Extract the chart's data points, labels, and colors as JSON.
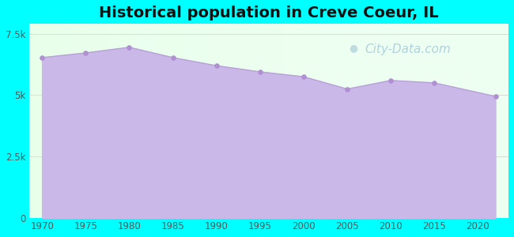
{
  "title": "Historical population in Creve Coeur, IL",
  "title_fontsize": 14,
  "title_fontweight": "bold",
  "background_color": "#00FFFF",
  "plot_bg_color": "#edfff0",
  "area_color": "#c9b8e8",
  "area_alpha": 1.0,
  "line_color": "#b8a0d8",
  "marker_color": "#b090d0",
  "years": [
    1970,
    1975,
    1980,
    1985,
    1990,
    1995,
    2000,
    2005,
    2010,
    2015,
    2022
  ],
  "population": [
    6530,
    6720,
    6950,
    6530,
    6200,
    5950,
    5750,
    5250,
    5600,
    5500,
    4950
  ],
  "ylim": [
    0,
    7900
  ],
  "yticks": [
    0,
    2500,
    5000,
    7500
  ],
  "ytick_labels": [
    "0",
    "2.5k",
    "5k",
    "7.5k"
  ],
  "xticks": [
    1970,
    1975,
    1980,
    1985,
    1990,
    1995,
    2000,
    2005,
    2010,
    2015,
    2020
  ],
  "tick_color": "#555555",
  "tick_fontsize": 8.5,
  "watermark_text": "City-Data.com",
  "watermark_color": "#aaccdd",
  "watermark_fontsize": 11,
  "xlim_left": 1968.5,
  "xlim_right": 2023.5
}
